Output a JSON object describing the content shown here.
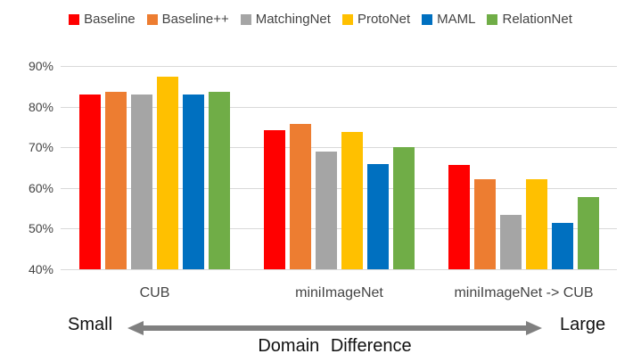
{
  "chart_data": {
    "type": "bar",
    "title": "",
    "categories": [
      "CUB",
      "miniImageNet",
      "miniImageNet -> CUB"
    ],
    "series": [
      {
        "name": "Baseline",
        "color": "#ff0000",
        "values": [
          82.9,
          74.3,
          65.6
        ]
      },
      {
        "name": "Baseline++",
        "color": "#ed7d31",
        "values": [
          83.6,
          75.8,
          62.1
        ]
      },
      {
        "name": "MatchingNet",
        "color": "#a5a5a5",
        "values": [
          82.9,
          68.9,
          53.3
        ]
      },
      {
        "name": "ProtoNet",
        "color": "#ffc000",
        "values": [
          87.4,
          73.7,
          62.1
        ]
      },
      {
        "name": "MAML",
        "color": "#0070c0",
        "values": [
          82.9,
          65.9,
          51.4
        ]
      },
      {
        "name": "RelationNet",
        "color": "#70ad47",
        "values": [
          83.7,
          70.0,
          57.7
        ]
      }
    ],
    "ylim": [
      40,
      90
    ],
    "y_ticks": [
      "90%",
      "80%",
      "70%",
      "60%",
      "50%",
      "40%"
    ],
    "grid": true,
    "legend_position": "top",
    "xlabel": "Domain Difference",
    "ylabel": ""
  },
  "annotations": {
    "small_label": "Small",
    "large_label": "Large",
    "axis_title": "Domain Difference"
  },
  "colors": {
    "gridline": "#d9d9d9",
    "axis_text": "#444444",
    "arrow": "#808080"
  }
}
